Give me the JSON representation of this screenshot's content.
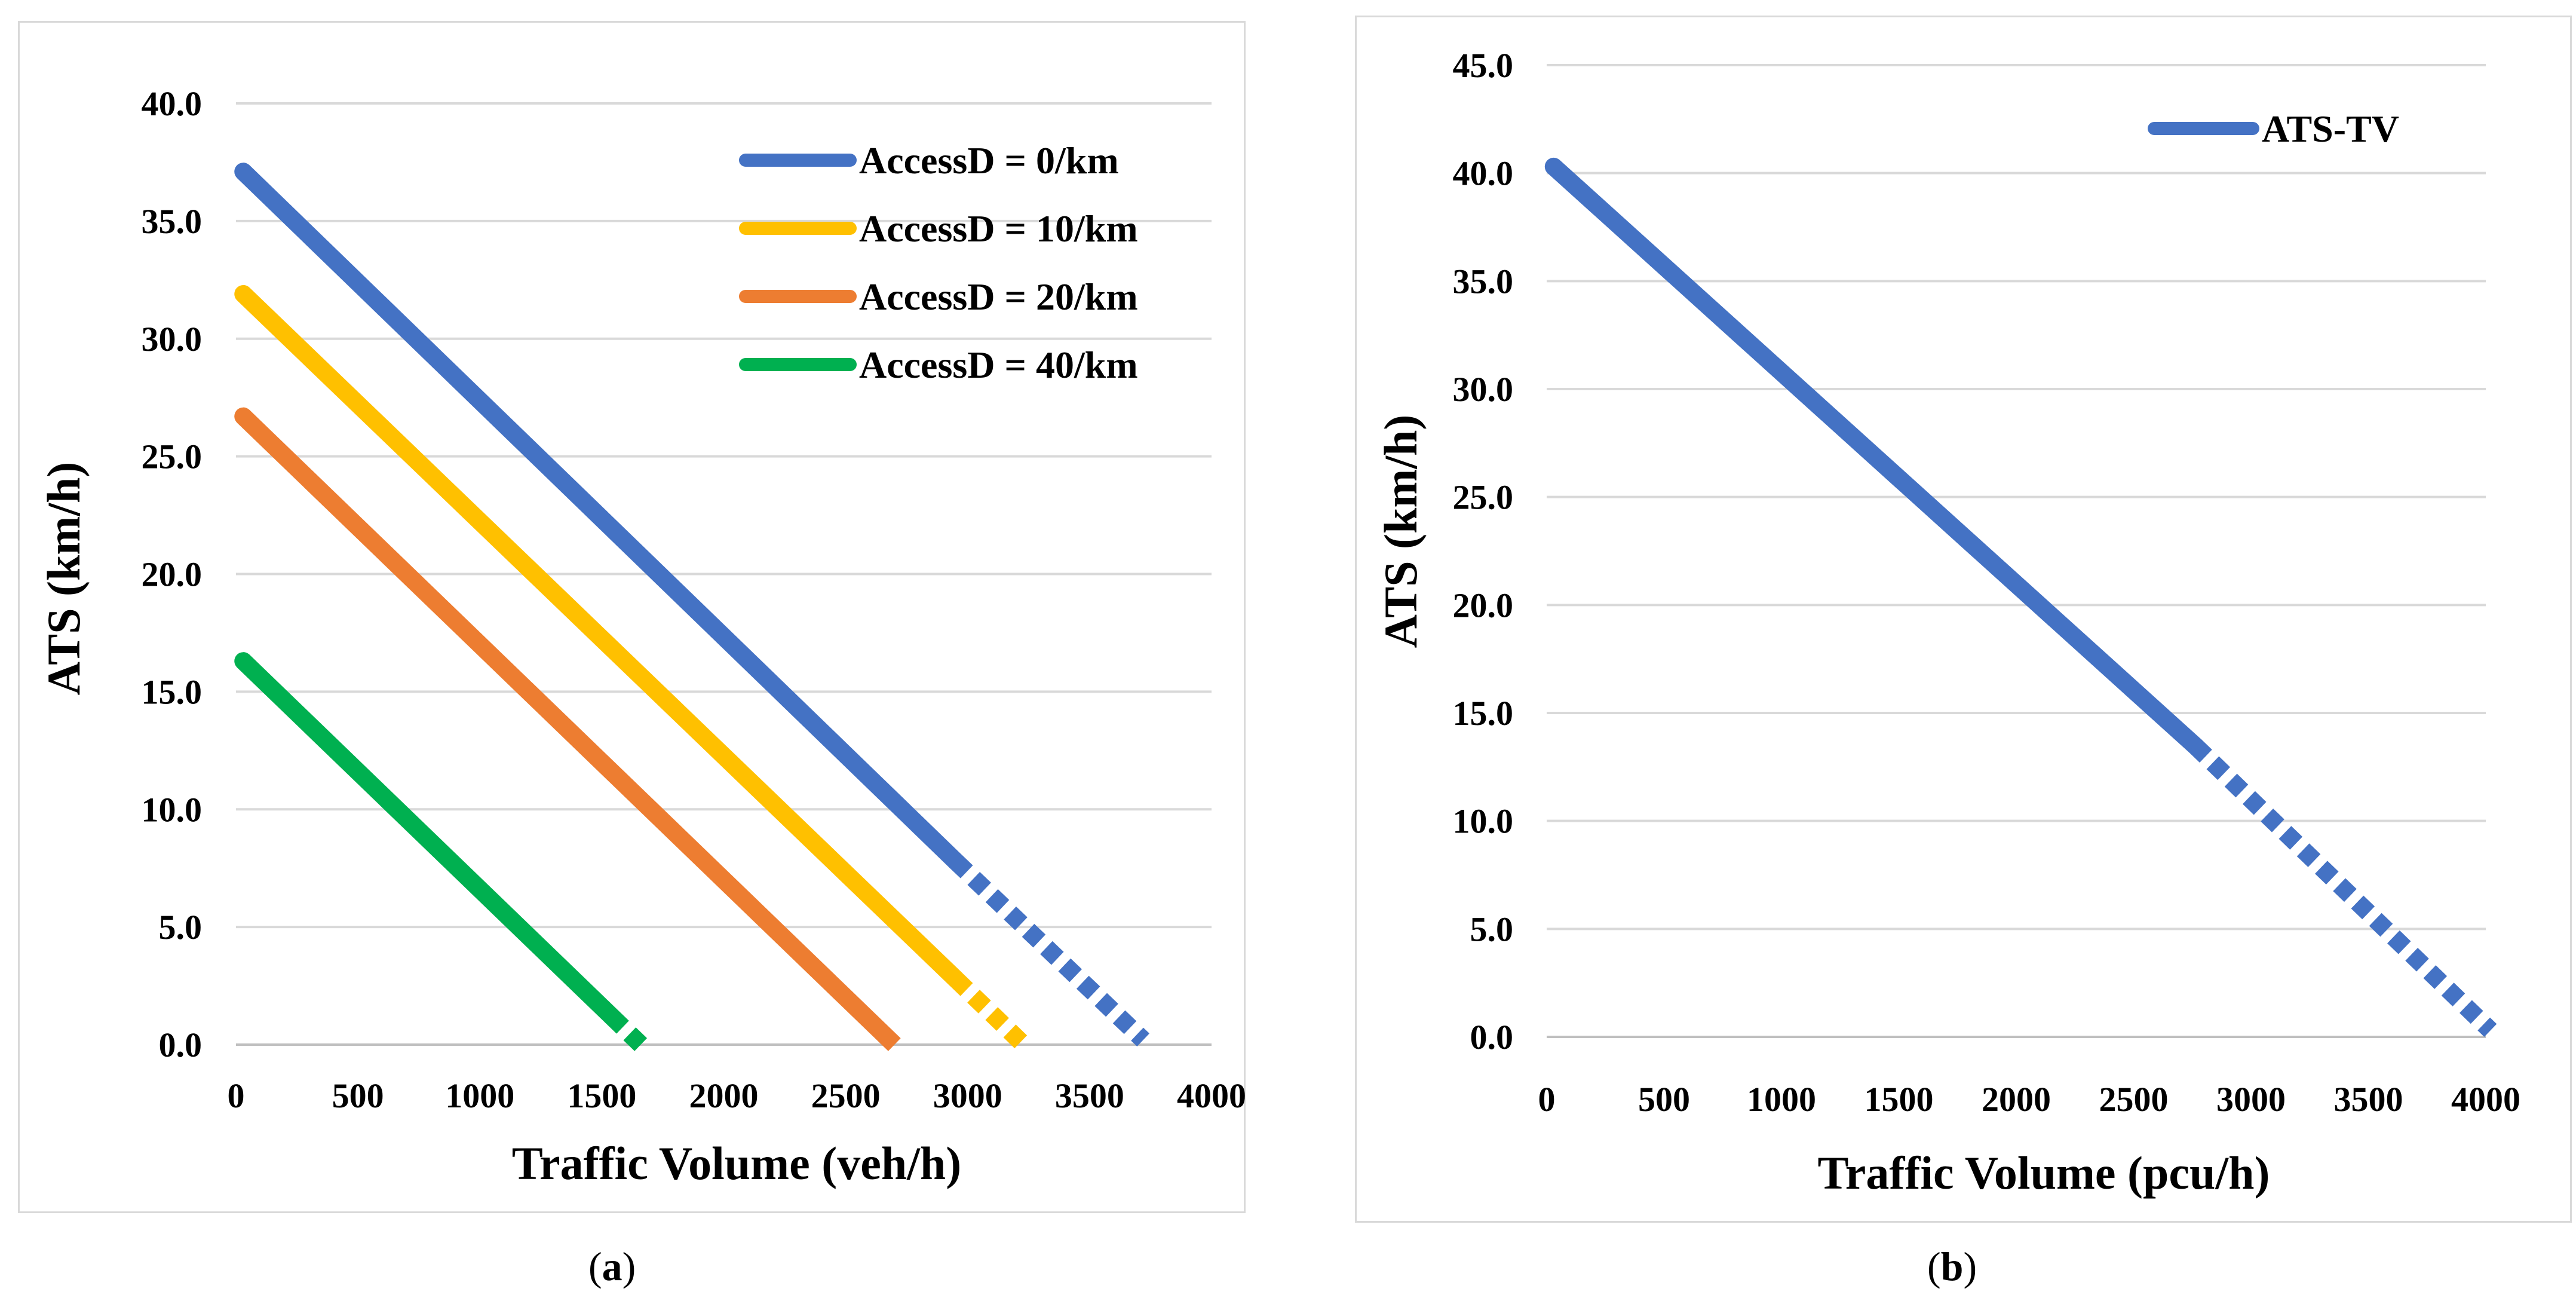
{
  "chart_data": [
    {
      "id": "a",
      "type": "line",
      "title": "",
      "xlabel": "Traffic Volume (veh/h)",
      "ylabel": "ATS (km/h)",
      "xlim": [
        0,
        4000
      ],
      "ylim": [
        0,
        40
      ],
      "xticks": [
        "0",
        "500",
        "1000",
        "1500",
        "2000",
        "2500",
        "3000",
        "3500",
        "4000"
      ],
      "yticks": [
        "0.0",
        "5.0",
        "10.0",
        "15.0",
        "20.0",
        "25.0",
        "30.0",
        "35.0",
        "40.0"
      ],
      "grid": true,
      "legend_position": "top-right",
      "series": [
        {
          "name": "AccessD = 0/km",
          "color": "#4472C4",
          "x_start": 30,
          "y_start": 37.1,
          "x_solid_end": 2950,
          "y_solid_end": 7.8,
          "x_end": 3720,
          "y_end": 0.2
        },
        {
          "name": "AccessD = 10/km",
          "color": "#FFC000",
          "x_start": 30,
          "y_start": 31.9,
          "x_solid_end": 2950,
          "y_solid_end": 2.8,
          "x_end": 3230,
          "y_end": 0.0
        },
        {
          "name": "AccessD = 20/km",
          "color": "#ED7D31",
          "x_start": 30,
          "y_start": 26.7,
          "x_solid_end": 2660,
          "y_solid_end": 0.4,
          "x_end": 2700,
          "y_end": 0.0
        },
        {
          "name": "AccessD = 40/km",
          "color": "#00B050",
          "x_start": 30,
          "y_start": 16.3,
          "x_solid_end": 1540,
          "y_solid_end": 1.2,
          "x_end": 1660,
          "y_end": 0.0
        }
      ]
    },
    {
      "id": "b",
      "type": "line",
      "title": "",
      "xlabel": "Traffic Volume (pcu/h)",
      "ylabel": "ATS (km/h)",
      "xlim": [
        0,
        4000
      ],
      "ylim": [
        0,
        45
      ],
      "xticks": [
        "0",
        "500",
        "1000",
        "1500",
        "2000",
        "2500",
        "3000",
        "3500",
        "4000"
      ],
      "yticks": [
        "0.0",
        "5.0",
        "10.0",
        "15.0",
        "20.0",
        "25.0",
        "30.0",
        "35.0",
        "40.0",
        "45.0"
      ],
      "grid": true,
      "legend_position": "top-right",
      "series": [
        {
          "name": "ATS-TV",
          "color": "#4472C4",
          "x_start": 30,
          "y_start": 40.3,
          "x_solid_end": 2760,
          "y_solid_end": 13.5,
          "x_end": 4020,
          "y_end": 0.3
        }
      ]
    }
  ],
  "subfigure_labels": {
    "a": "a",
    "b": "b"
  }
}
